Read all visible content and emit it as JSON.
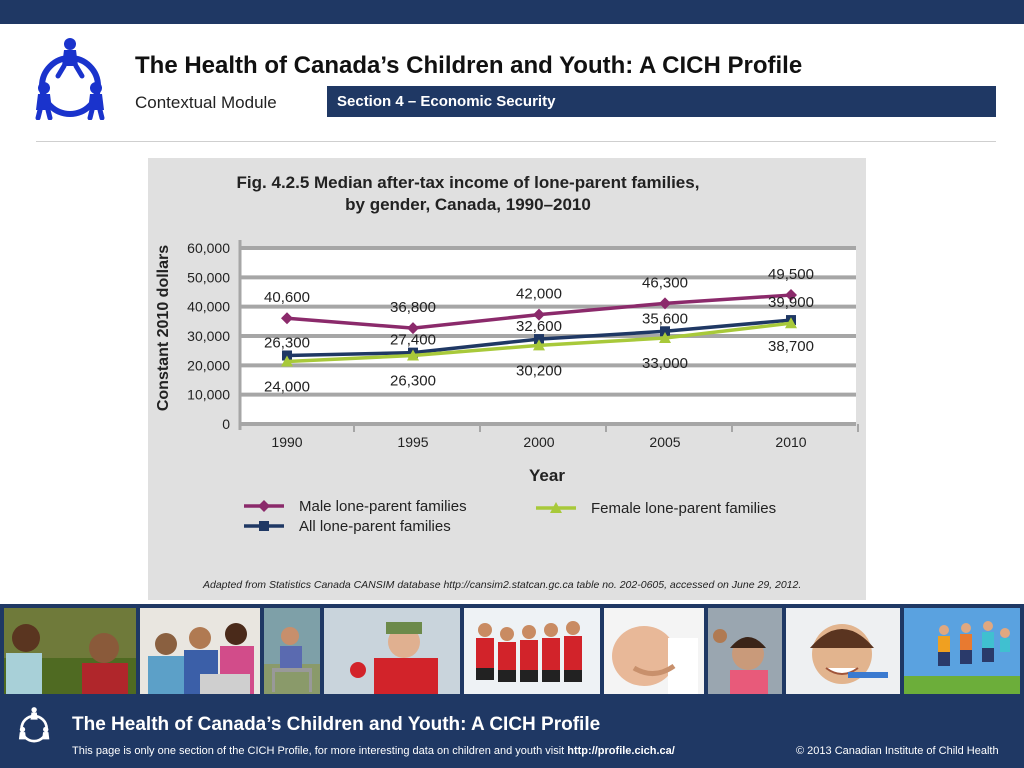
{
  "header": {
    "title": "The Health of Canada’s Children and Youth: A CICH Profile",
    "subtitle": "Contextual Module",
    "section": "Section 4 – Economic Security"
  },
  "figure": {
    "source": "Adapted from Statistics Canada CANSIM database http://cansim2.statcan.gc.ca table no. 202-0605, accessed on June 29, 2012."
  },
  "chart_data": {
    "type": "line",
    "title": "Fig. 4.2.5  Median after-tax income of lone-parent families, by gender, Canada, 1990–2010",
    "title_lines": [
      "Fig. 4.2.5  Median after-tax income of lone-parent families,",
      "by gender, Canada, 1990–2010"
    ],
    "xlabel": "Year",
    "ylabel": "Constant 2010 dollars",
    "categories": [
      "1990",
      "1995",
      "2000",
      "2005",
      "2010"
    ],
    "ylim": [
      0,
      60000
    ],
    "yticks": [
      "0",
      "10,000",
      "20,000",
      "30,000",
      "40,000",
      "50,000",
      "60,000"
    ],
    "grid": true,
    "legend_position": "bottom",
    "series": [
      {
        "name": "Male lone-parent families",
        "values": [
          40600,
          36800,
          42000,
          46300,
          49500
        ],
        "labels": [
          "40,600",
          "36,800",
          "42,000",
          "46,300",
          "49,500"
        ],
        "color": "#8b2a6b",
        "marker": "diamond"
      },
      {
        "name": "All lone-parent families",
        "values": [
          26300,
          27400,
          32600,
          35600,
          39900
        ],
        "labels": [
          "26,300",
          "27,400",
          "32,600",
          "35,600",
          "39,900"
        ],
        "color": "#1f3864",
        "marker": "square"
      },
      {
        "name": "Female lone-parent families",
        "values": [
          24000,
          26300,
          30200,
          33000,
          38700
        ],
        "labels": [
          "24,000",
          "26,300",
          "30,200",
          "33,000",
          "38,700"
        ],
        "color": "#a8c93a",
        "marker": "triangle"
      }
    ]
  },
  "footer": {
    "title": "The Health of Canada’s Children and Youth: A CICH Profile",
    "text": "This page is only one section of the CICH Profile, for more interesting data on children and youth visit ",
    "url": "http://profile.cich.ca/",
    "copyright": "© 2013 Canadian Institute of Child Health"
  },
  "colors": {
    "navy": "#1f3864",
    "male": "#8b2a6b",
    "all": "#1f3864",
    "female": "#a8c93a"
  },
  "icons": {
    "logo": "cich-logo-icon"
  }
}
